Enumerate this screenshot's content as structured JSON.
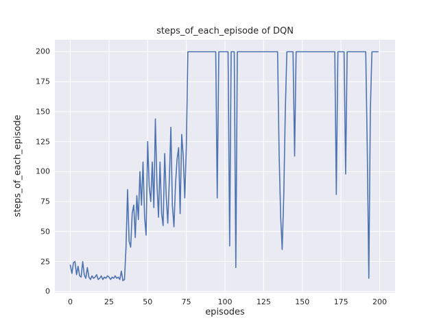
{
  "chart_data": {
    "type": "line",
    "title": "steps_of_each_episode of DQN",
    "xlabel": "episodes",
    "ylabel": "steps_of_each_episode",
    "x_start": 0,
    "x_step": 1,
    "values": [
      22,
      15,
      24,
      25,
      14,
      21,
      13,
      12,
      25,
      14,
      11,
      20,
      12,
      10,
      13,
      11,
      12,
      14,
      10,
      11,
      13,
      10,
      12,
      11,
      13,
      12,
      10,
      12,
      11,
      13,
      11,
      12,
      10,
      17,
      9,
      10,
      37,
      85,
      42,
      37,
      65,
      72,
      45,
      80,
      60,
      100,
      72,
      108,
      62,
      47,
      125,
      88,
      75,
      108,
      70,
      144,
      90,
      62,
      108,
      65,
      55,
      115,
      80,
      57,
      92,
      137,
      72,
      54,
      90,
      110,
      120,
      65,
      131,
      113,
      78,
      120,
      200,
      200,
      200,
      200,
      200,
      200,
      200,
      200,
      200,
      200,
      200,
      200,
      200,
      200,
      200,
      200,
      200,
      200,
      200,
      78,
      200,
      200,
      200,
      200,
      200,
      200,
      200,
      38,
      200,
      200,
      200,
      20,
      200,
      200,
      200,
      200,
      200,
      200,
      200,
      200,
      200,
      200,
      200,
      200,
      200,
      200,
      200,
      200,
      200,
      200,
      200,
      200,
      200,
      200,
      200,
      200,
      200,
      200,
      200,
      115,
      62,
      35,
      80,
      150,
      200,
      200,
      200,
      200,
      200,
      113,
      200,
      200,
      200,
      200,
      200,
      200,
      200,
      200,
      200,
      200,
      200,
      200,
      200,
      200,
      200,
      200,
      200,
      200,
      200,
      200,
      200,
      200,
      200,
      200,
      200,
      200,
      81,
      200,
      200,
      200,
      200,
      200,
      98,
      200,
      200,
      200,
      200,
      200,
      200,
      200,
      200,
      200,
      200,
      200,
      200,
      200,
      120,
      11,
      150,
      200,
      200,
      200,
      200,
      200
    ],
    "xlim": [
      -10,
      210
    ],
    "ylim": [
      -1,
      210
    ],
    "xticks": [
      0,
      25,
      50,
      75,
      100,
      125,
      150,
      175,
      200
    ],
    "yticks": [
      0,
      25,
      50,
      75,
      100,
      125,
      150,
      175,
      200
    ],
    "grid": true,
    "legend_position": "none",
    "colors": {
      "line": "#4c72b0",
      "plot_bg": "#eaeaf2",
      "grid": "#ffffff",
      "text": "#262626",
      "figure_bg": "#ffffff"
    }
  }
}
